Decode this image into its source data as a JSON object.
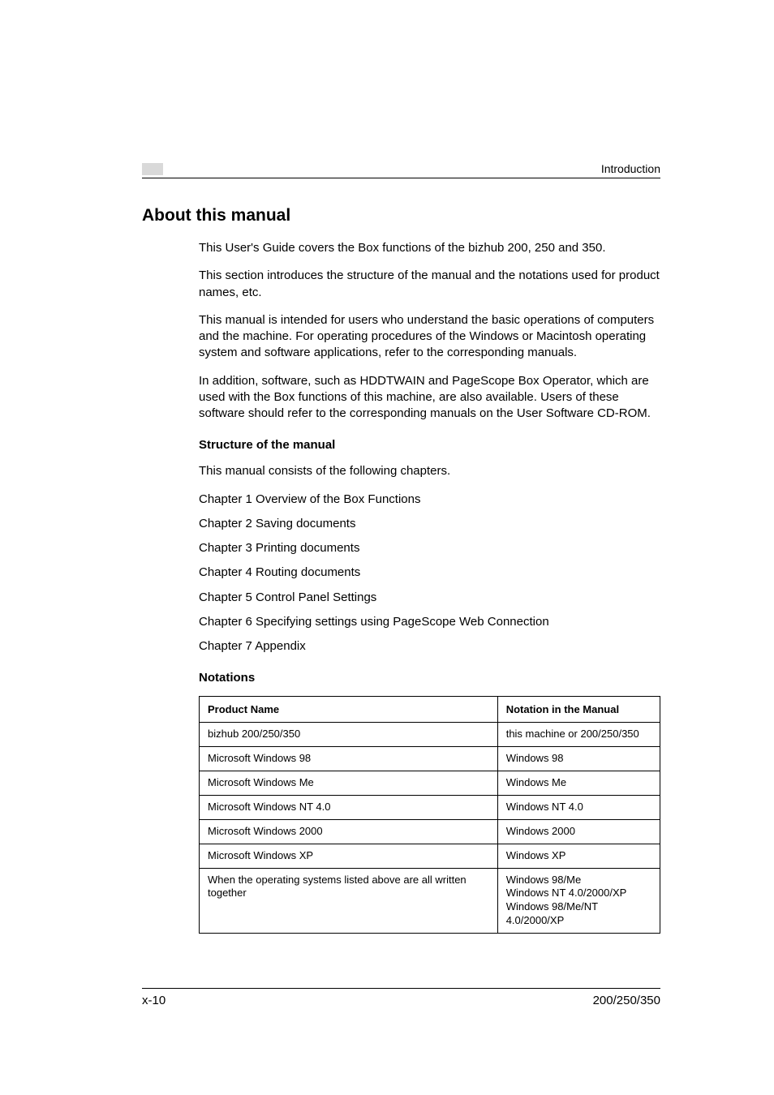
{
  "header": {
    "label": "Introduction"
  },
  "title": "About this manual",
  "paragraphs": {
    "p1": "This User's Guide covers the Box functions of the bizhub 200, 250 and 350.",
    "p2": "This section introduces the structure of the manual and the notations used for product names, etc.",
    "p3": "This manual is intended for users who understand the basic operations of computers and the machine. For operating procedures of the Windows or Macintosh operating system and software applications, refer to the corresponding manuals.",
    "p4": "In addition, software, such as HDDTWAIN and PageScope Box Operator, which are used with the Box functions of this machine, are also available. Users of these software should refer to the corresponding manuals on the User Software CD-ROM."
  },
  "structure": {
    "heading": "Structure of the manual",
    "intro": "This manual consists of the following chapters.",
    "chapters": [
      "Chapter 1 Overview of the Box Functions",
      "Chapter 2 Saving documents",
      "Chapter 3 Printing documents",
      "Chapter 4 Routing documents",
      "Chapter 5 Control Panel Settings",
      "Chapter 6 Specifying settings using PageScope Web Connection",
      "Chapter 7 Appendix"
    ]
  },
  "notations": {
    "heading": "Notations",
    "columns": [
      "Product Name",
      "Notation in the Manual"
    ],
    "rows": [
      [
        "bizhub 200/250/350",
        "this machine or 200/250/350"
      ],
      [
        "Microsoft Windows 98",
        "Windows 98"
      ],
      [
        "Microsoft Windows Me",
        "Windows Me"
      ],
      [
        "Microsoft Windows NT 4.0",
        "Windows NT 4.0"
      ],
      [
        "Microsoft Windows 2000",
        "Windows 2000"
      ],
      [
        "Microsoft Windows XP",
        "Windows XP"
      ],
      [
        "When the operating systems listed above are all written together",
        "Windows 98/Me\nWindows NT 4.0/2000/XP\nWindows 98/Me/NT 4.0/2000/XP"
      ]
    ]
  },
  "footer": {
    "left": "x-10",
    "right": "200/250/350"
  }
}
